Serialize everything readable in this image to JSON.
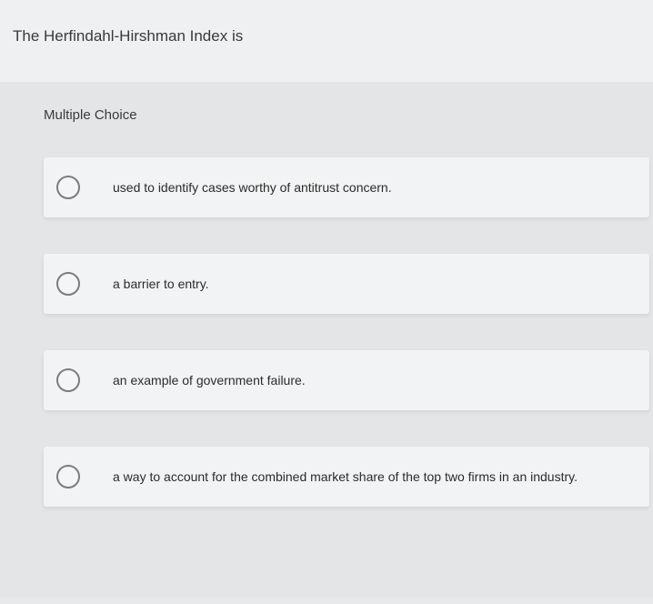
{
  "question": {
    "text": "The Herfindahl-Hirshman Index is"
  },
  "section": {
    "label": "Multiple Choice"
  },
  "options": [
    {
      "text": "used to identify cases worthy of antitrust concern."
    },
    {
      "text": "a barrier to entry."
    },
    {
      "text": "an example of government failure."
    },
    {
      "text": "a way to account for the combined market share of the top two firms in an industry."
    }
  ],
  "colors": {
    "page_bg": "#e8e9eb",
    "question_bg": "#eef0f2",
    "section_bg": "#e3e5e7",
    "option_bg": "#f2f3f4",
    "radio_border": "#7a7d82",
    "text": "#3a3a3a"
  }
}
